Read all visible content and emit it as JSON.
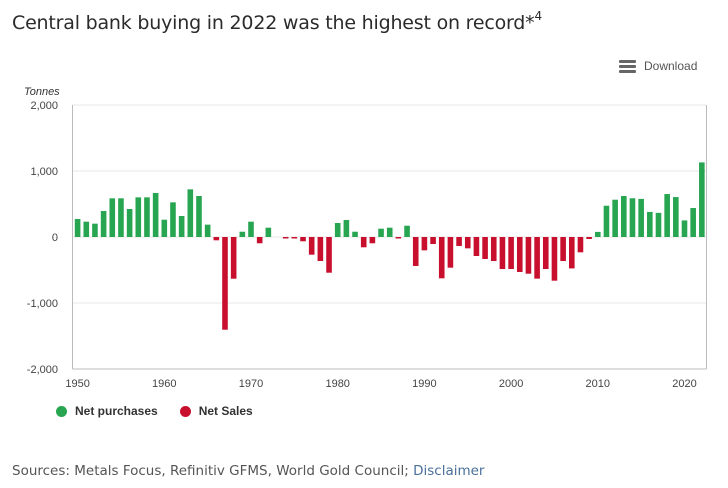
{
  "header": {
    "title": "Central bank buying in 2022 was the highest on record*",
    "title_superscript": "4",
    "download_label": "Download",
    "download_icon": "hamburger-menu-icon"
  },
  "footer": {
    "sources_text": "Sources: Metals Focus, Refinitiv GFMS, World Gold Council; ",
    "disclaimer_label": "Disclaimer"
  },
  "colors": {
    "positive": "#27a551",
    "negative": "#c8102e"
  },
  "chart_data": {
    "type": "bar",
    "title": "Central bank buying in 2022 was the highest on record*4",
    "xlabel": "",
    "ylabel": "Tonnes",
    "ylim": [
      -2000,
      2000
    ],
    "xlim": [
      1950,
      2022
    ],
    "yticks": [
      2000,
      1000,
      0,
      -1000,
      -2000
    ],
    "ytick_labels": [
      "2,000",
      "1,000",
      "0",
      "-1,000",
      "-2,000"
    ],
    "xticks": [
      1950,
      1960,
      1970,
      1980,
      1990,
      2000,
      2010,
      2020
    ],
    "xtick_labels": [
      "1950",
      "1960",
      "1970",
      "1980",
      "1990",
      "2000",
      "2010",
      "2020"
    ],
    "grid": "horizontal dotted",
    "legend": {
      "position": "bottom-left",
      "entries": [
        {
          "label": "Net purchases",
          "color": "#27a551"
        },
        {
          "label": "Net Sales",
          "color": "#c8102e"
        }
      ]
    },
    "categories": [
      1950,
      1951,
      1952,
      1953,
      1954,
      1955,
      1956,
      1957,
      1958,
      1959,
      1960,
      1961,
      1962,
      1963,
      1964,
      1965,
      1966,
      1967,
      1968,
      1969,
      1970,
      1971,
      1972,
      1973,
      1974,
      1975,
      1976,
      1977,
      1978,
      1979,
      1980,
      1981,
      1982,
      1983,
      1984,
      1985,
      1986,
      1987,
      1988,
      1989,
      1990,
      1991,
      1992,
      1993,
      1994,
      1995,
      1996,
      1997,
      1998,
      1999,
      2000,
      2001,
      2002,
      2003,
      2004,
      2005,
      2006,
      2007,
      2008,
      2009,
      2010,
      2011,
      2012,
      2013,
      2014,
      2015,
      2016,
      2017,
      2018,
      2019,
      2020,
      2021,
      2022
    ],
    "values": [
      273,
      232,
      202,
      394,
      586,
      586,
      424,
      601,
      601,
      667,
      262,
      525,
      318,
      722,
      621,
      187,
      -50,
      -1405,
      -632,
      80,
      232,
      -95,
      141,
      0,
      -6,
      -5,
      -65,
      -268,
      -364,
      -541,
      212,
      258,
      80,
      -156,
      -95,
      126,
      141,
      -20,
      171,
      -439,
      -202,
      -106,
      -626,
      -465,
      -136,
      -172,
      -288,
      -333,
      -364,
      -485,
      -485,
      -530,
      -556,
      -631,
      -485,
      -662,
      -364,
      -476,
      -232,
      -30,
      77,
      474,
      565,
      621,
      587,
      577,
      380,
      366,
      651,
      605,
      251,
      439,
      1130
    ],
    "series": [
      {
        "name": "Net purchases",
        "rule": "value >= 0",
        "color": "#27a551"
      },
      {
        "name": "Net Sales",
        "rule": "value < 0",
        "color": "#c8102e"
      }
    ]
  }
}
